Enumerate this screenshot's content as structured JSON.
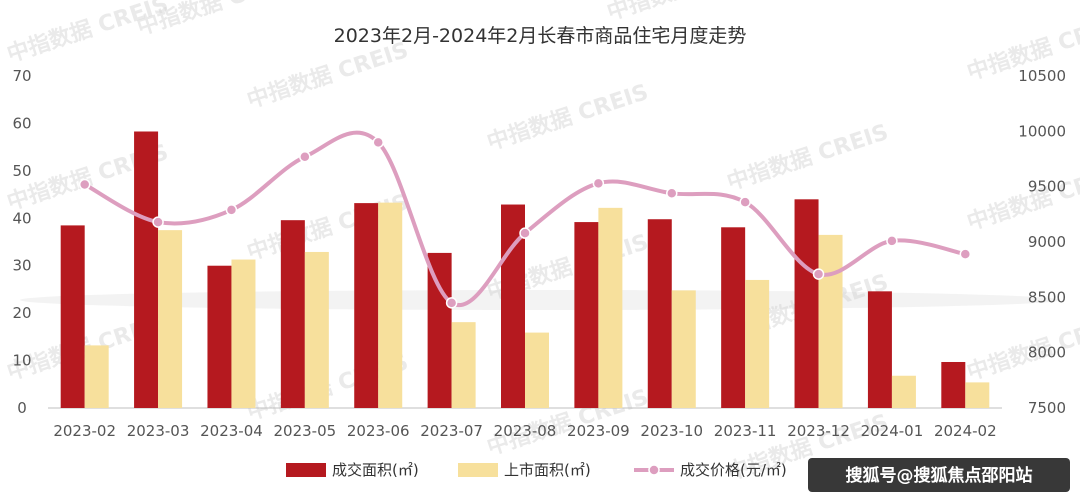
{
  "chart_data": {
    "type": "bar+line",
    "title": "2023年2月-2024年2月长春市商品住宅月度走势",
    "categories": [
      "2023-02",
      "2023-03",
      "2023-04",
      "2023-05",
      "2023-06",
      "2023-07",
      "2023-08",
      "2023-09",
      "2023-10",
      "2023-11",
      "2023-12",
      "2024-01",
      "2024-02"
    ],
    "series": [
      {
        "name": "成交面积(㎡)",
        "axis": "left",
        "kind": "bar",
        "color": "#b5191f",
        "values": [
          38.5,
          58.3,
          30.0,
          39.6,
          43.2,
          32.7,
          42.9,
          39.2,
          39.8,
          38.1,
          44.0,
          24.6,
          9.7
        ]
      },
      {
        "name": "上市面积(㎡)",
        "axis": "left",
        "kind": "bar",
        "color": "#f7e09c",
        "values": [
          13.2,
          37.5,
          31.3,
          32.9,
          43.3,
          18.1,
          15.9,
          42.2,
          24.8,
          27.0,
          36.5,
          6.8,
          5.4
        ]
      },
      {
        "name": "成交价格(元/㎡)",
        "axis": "right",
        "kind": "line",
        "color": "#dd9ebf",
        "values": [
          9520,
          9180,
          9290,
          9770,
          9900,
          8450,
          9080,
          9530,
          9440,
          9360,
          8710,
          9010,
          8890
        ]
      }
    ],
    "y_left": {
      "min": 0,
      "max": 70,
      "ticks": [
        0,
        10,
        20,
        30,
        40,
        50,
        60,
        70
      ]
    },
    "y_right": {
      "min": 7500,
      "max": 10500,
      "ticks": [
        7500,
        8000,
        8500,
        9000,
        9500,
        10000,
        10500
      ]
    },
    "legend_position": "bottom-center",
    "grid": false
  },
  "watermark": "中指数据 CREIS",
  "credit": "搜狐号@搜狐焦点邵阳站"
}
